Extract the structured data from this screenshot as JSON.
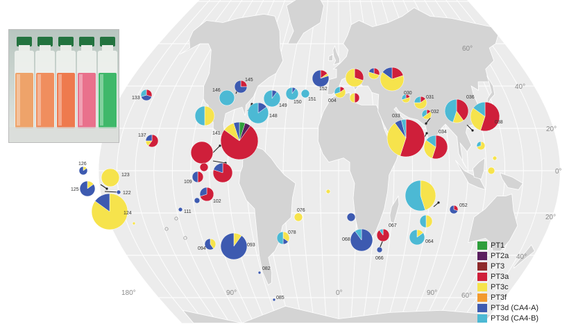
{
  "colors": {
    "PT1": "#2e9e3c",
    "PT2a": "#5a1e5e",
    "PT3": "#8e2a2a",
    "PT3a": "#cf1f3a",
    "PT3c": "#f6e34c",
    "PT3f": "#f29a2e",
    "PT3d_A": "#3d5ab0",
    "PT3d_B": "#4cb9d4"
  },
  "legend": [
    {
      "key": "PT1",
      "label": "PT1"
    },
    {
      "key": "PT2a",
      "label": "PT2a"
    },
    {
      "key": "PT3",
      "label": "PT3"
    },
    {
      "key": "PT3a",
      "label": "PT3a"
    },
    {
      "key": "PT3c",
      "label": "PT3c"
    },
    {
      "key": "PT3f",
      "label": "PT3f"
    },
    {
      "key": "PT3d_A",
      "label": "PT3d (CA4-A)"
    },
    {
      "key": "PT3d_B",
      "label": "PT3d (CA4-B)"
    }
  ],
  "latitude_labels": [
    "60°",
    "40°",
    "20°",
    "0°",
    "20°",
    "40°",
    "60°"
  ],
  "longitude_labels": [
    "180°",
    "90°",
    "0°",
    "90°"
  ],
  "photo": {
    "name": "culture-flasks-photo",
    "flask_colors": [
      "#eea36a",
      "#f08e5e",
      "#ee7a4e",
      "#e9718c",
      "#3fb86a"
    ]
  },
  "sites": [
    {
      "id": "004",
      "lon": 4,
      "lat": 36,
      "values": {
        "PT3c": 55,
        "PT3d_B": 30,
        "PT3a": 15
      }
    },
    {
      "id": "030",
      "lon": 40,
      "lat": 32,
      "values": {
        "PT3c": 50,
        "PT3d_B": 30,
        "PT3a": 20
      }
    },
    {
      "id": "031",
      "lon": 51,
      "lat": 28,
      "values": {
        "PT3c": 60,
        "PT3d_B": 25,
        "PT3a": 15
      }
    },
    {
      "id": "032",
      "lon": 54,
      "lat": 22,
      "values": {
        "PT3c": 50,
        "PT3d_B": 35,
        "PT3a": 15
      }
    },
    {
      "id": "033",
      "lon": 40,
      "lat": 12,
      "values": {
        "PT3a": 55,
        "PT3c": 35,
        "PT3d_A": 6,
        "PT3d_B": 4
      }
    },
    {
      "id": "034",
      "lon": 58,
      "lat": 8,
      "values": {
        "PT3a": 55,
        "PT3c": 30,
        "PT3d_B": 15
      }
    },
    {
      "id": "036",
      "lon": 66,
      "lat": 24,
      "values": {
        "PT3a": 40,
        "PT3c": 15,
        "PT3d_B": 45
      }
    },
    {
      "id": "038",
      "lon": 88,
      "lat": 19,
      "values": {
        "PT3a": 55,
        "PT3c": 30,
        "PT3d_B": 15
      }
    },
    {
      "id": "052",
      "lon": 74,
      "lat": -12,
      "values": {
        "PT3d_A": 70,
        "PT3a": 30
      }
    },
    {
      "id": "064",
      "lon": 52,
      "lat": -25,
      "values": {
        "PT3d_B": 85,
        "PT3c": 15
      }
    },
    {
      "id": "066",
      "lon": 24,
      "lat": -34,
      "values": {
        "PT3d_A": 100
      }
    },
    {
      "id": "067",
      "lon": 27,
      "lat": -25,
      "values": {
        "PT3a": 90,
        "PT3d_B": 10
      }
    },
    {
      "id": "068",
      "lon": 14,
      "lat": -29,
      "values": {
        "PT3d_A": 90,
        "PT3d_B": 10
      }
    },
    {
      "id": "076",
      "lon": -6,
      "lat": -16,
      "values": {
        "PT3c": 100
      }
    },
    {
      "id": "078",
      "lon": -10,
      "lat": -25,
      "values": {
        "PT3d_B": 50,
        "PT3c": 35,
        "PT3d_A": 15
      }
    },
    {
      "id": "082",
      "lon": -56,
      "lat": -48,
      "values": {
        "PT3d_A": 100
      }
    },
    {
      "id": "085",
      "lon": -52,
      "lat": -63,
      "values": {
        "PT3d_A": 100
      }
    },
    {
      "id": "093",
      "lon": -76,
      "lat": -31,
      "values": {
        "PT3d_A": 90,
        "PT3c": 10
      }
    },
    {
      "id": "094",
      "lon": -90,
      "lat": -26,
      "values": {
        "PT3d_A": 60,
        "PT3c": 40
      }
    },
    {
      "id": "102",
      "lon": -93,
      "lat": -4,
      "values": {
        "PT3a": 70,
        "PT3d_A": 30
      }
    },
    {
      "id": "109",
      "lon": -90,
      "lat": 2,
      "values": {
        "PT3a": 50,
        "PT3d_A": 50
      }
    },
    {
      "id": "111",
      "lon": -103,
      "lat": -10,
      "values": {
        "PT3d_A": 100
      }
    },
    {
      "id": "122",
      "lon": -140,
      "lat": -3,
      "values": {
        "PT3d_A": 100
      }
    },
    {
      "id": "123",
      "lon": -140,
      "lat": 5,
      "values": {
        "PT3c": 100
      }
    },
    {
      "id": "124",
      "lon": -140,
      "lat": -9,
      "values": {
        "PT3c": 85,
        "PT3d_A": 15
      }
    },
    {
      "id": "125",
      "lon": -150,
      "lat": -2,
      "values": {
        "PT3d_A": 85,
        "PT3c": 15
      }
    },
    {
      "id": "126",
      "lon": -150,
      "lat": 7,
      "values": {
        "PT3d_A": 85,
        "PT3c": 15
      }
    },
    {
      "id": "133",
      "lon": -128,
      "lat": 35,
      "values": {
        "PT3a": 30,
        "PT3d_A": 40,
        "PT3d_B": 30
      }
    },
    {
      "id": "137",
      "lon": -112,
      "lat": 18,
      "values": {
        "PT3a": 60,
        "PT3d_A": 25,
        "PT3c": 15
      }
    },
    {
      "id": "141",
      "lon": -72,
      "lat": 22,
      "values": {
        "PT3a": 75,
        "PT3c": 10,
        "PT1": 5,
        "PT2a": 5,
        "PT3d_A": 5
      }
    },
    {
      "id": "145",
      "lon": -66,
      "lat": 40,
      "values": {
        "PT3d_A": 75,
        "PT3a": 25
      }
    },
    {
      "id": "146",
      "lon": -72,
      "lat": 36,
      "values": {
        "PT3d_B": 100
      }
    },
    {
      "id": "148",
      "lon": -56,
      "lat": 26,
      "values": {
        "PT3d_B": 85,
        "PT3d_A": 15
      }
    },
    {
      "id": "149",
      "lon": -50,
      "lat": 40,
      "values": {
        "PT3d_B": 90,
        "PT3d_A": 10
      }
    },
    {
      "id": "150",
      "lon": -30,
      "lat": 43,
      "values": {
        "PT3d_B": 90,
        "PT3d_A": 10
      }
    },
    {
      "id": "151",
      "lon": -20,
      "lat": 42,
      "values": {
        "PT3d_B": 100
      }
    },
    {
      "id": "152",
      "lon": -10,
      "lat": 47,
      "values": {
        "PT3d_A": 80,
        "PT3a": 15,
        "PT3c": 5
      }
    }
  ],
  "unlabeled_pies": [
    {
      "lon": 12,
      "lat": 49,
      "values": {
        "PT3c": 70,
        "PT3a": 30
      }
    },
    {
      "lon": 30,
      "lat": 48,
      "values": {
        "PT3c": 50,
        "PT3a": 30,
        "PT3d_A": 20
      }
    },
    {
      "lon": 40,
      "lat": 47,
      "values": {
        "PT3c": 65,
        "PT3a": 20,
        "PT3d_A": 15
      }
    },
    {
      "lon": 18,
      "lat": 38,
      "values": {
        "PT3c": 50,
        "PT3a": 50
      }
    },
    {
      "lon": -85,
      "lat": 26,
      "values": {
        "PT3c": 50,
        "PT3d_B": 50
      }
    },
    {
      "lon": -88,
      "lat": 10,
      "values": {
        "PT3a": 100
      }
    },
    {
      "lon": -88,
      "lat": 6,
      "values": {
        "PT3a": 100
      }
    },
    {
      "lon": -78,
      "lat": 4,
      "values": {
        "PT3a": 80,
        "PT3d_A": 20
      }
    },
    {
      "lon": -83,
      "lat": -12,
      "values": {
        "PT3d_A": 100
      }
    },
    {
      "lon": 50,
      "lat": -5,
      "values": {
        "PT3c": 45,
        "PT3d_B": 55
      }
    },
    {
      "lon": 60,
      "lat": -20,
      "values": {
        "PT3c": 50,
        "PT3d_B": 50
      }
    },
    {
      "lon": 80,
      "lat": 9,
      "values": {
        "PT3c": 70,
        "PT3d_B": 30
      }
    },
    {
      "lon": 84,
      "lat": 3,
      "values": {
        "PT3c": 100
      }
    },
    {
      "lon": 86,
      "lat": -3,
      "values": {
        "PT3c": 100
      }
    },
    {
      "lon": -122,
      "lat": -15,
      "values": {
        "PT3c": 100
      }
    },
    {
      "lon": -18,
      "lat": -2,
      "values": {
        "PT3c": 100
      }
    },
    {
      "lon": 7,
      "lat": -16,
      "values": {
        "PT3d_A": 100
      }
    }
  ]
}
